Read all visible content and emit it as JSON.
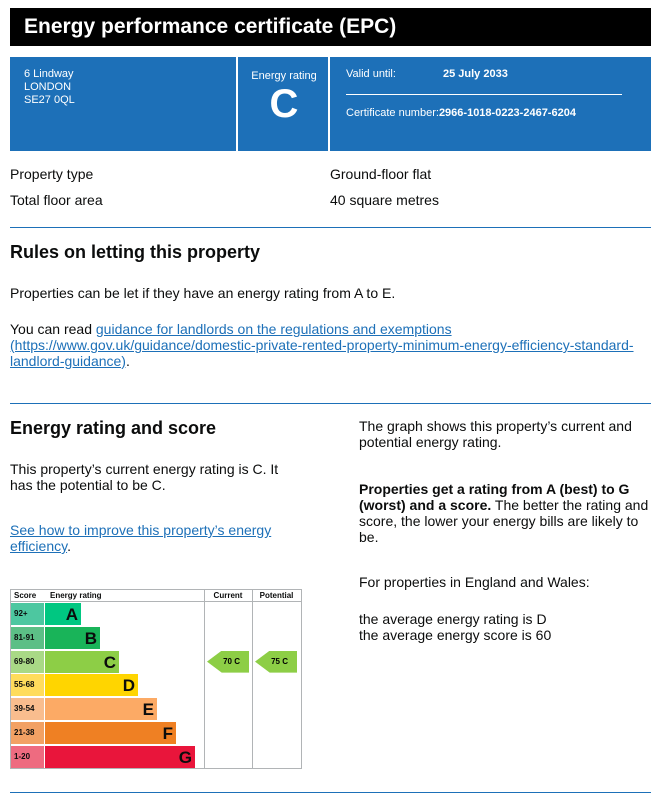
{
  "header": {
    "title": "Energy performance certificate (EPC)"
  },
  "banner": {
    "address": [
      "6 Lindway",
      "LONDON",
      "SE27 0QL"
    ],
    "rating_label": "Energy rating",
    "rating": "C",
    "valid_label": "Valid until:",
    "valid_date": "25 July 2033",
    "cert_label": "Certificate number:",
    "cert_number": "2966-1018-0223-2467-6204"
  },
  "summary": [
    {
      "label": "Property type",
      "value": "Ground-floor flat"
    },
    {
      "label": "Total floor area",
      "value": "40 square metres"
    }
  ],
  "rules": {
    "heading": "Rules on letting this property",
    "p1": "Properties can be let if they have an energy rating from A to E.",
    "p2_prefix": "You can read ",
    "link": "guidance for landlords on the regulations and exemptions (https://www.gov.uk/guidance/domestic-private-rented-property-minimum-energy-efficiency-standard-landlord-guidance)",
    "p2_suffix": "."
  },
  "rating_section": {
    "heading": "Energy rating and score",
    "p1": "This property’s current energy rating is C. It has the potential to be C.",
    "link": "See how to improve this property’s energy efficiency",
    "link_suffix": ".",
    "right_p1": "The graph shows this property’s current and potential energy rating.",
    "right_bold": "Properties get a rating from A (best) to G (worst) and a score.",
    "right_p2": " The better the rating and score, the lower your energy bills are likely to be.",
    "right_p3": "For properties in England and Wales:",
    "right_p4": "the average energy rating is D",
    "right_p5": "the average energy score is 60"
  },
  "chart": {
    "col_score": "Score",
    "col_rating": "Energy rating",
    "col_current": "Current",
    "col_potential": "Potential",
    "bands": [
      {
        "score": "92+",
        "letter": "A",
        "color": "#00c781",
        "score_bg": "#4dc7a0"
      },
      {
        "score": "81-91",
        "letter": "B",
        "color": "#19b459",
        "score_bg": "#5cbf86"
      },
      {
        "score": "69-80",
        "letter": "C",
        "color": "#8dce46",
        "score_bg": "#a9d986"
      },
      {
        "score": "55-68",
        "letter": "D",
        "color": "#ffd500",
        "score_bg": "#ffdc5c"
      },
      {
        "score": "39-54",
        "letter": "E",
        "color": "#fcaa65",
        "score_bg": "#f9bd8e"
      },
      {
        "score": "21-38",
        "letter": "F",
        "color": "#ef8023",
        "score_bg": "#f2a164"
      },
      {
        "score": "1-20",
        "letter": "G",
        "color": "#e9153b",
        "score_bg": "#ee6b80"
      }
    ],
    "current": "70 C",
    "potential": "75 C",
    "current_band": "C",
    "potential_band": "C"
  }
}
